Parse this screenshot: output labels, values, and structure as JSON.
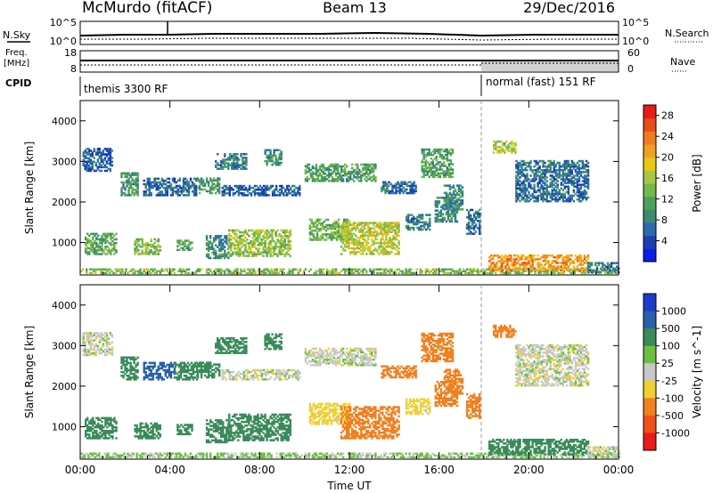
{
  "header": {
    "title": "McMurdo (fitACF)",
    "beam": "Beam 13",
    "date": "29/Dec/2016"
  },
  "top_panels": {
    "nsky_label": "N.Sky",
    "nsearch_label": "N.Search",
    "nsky_ticks": [
      "10^5",
      "10^0"
    ],
    "nsearch_ticks": [
      "10^5",
      "10^0"
    ],
    "freq_label_1": "Freq.",
    "freq_label_2": "[MHz]",
    "freq_ticks": [
      "18",
      "8"
    ],
    "nave_label": "Nave",
    "nave_ticks": [
      "60",
      "0"
    ],
    "cpid_label": "CPID",
    "cpid_modes": [
      {
        "name": "themis 3300 RF",
        "start_hour": 0
      },
      {
        "name": "normal (fast) 151 RF",
        "start_hour": 18
      }
    ]
  },
  "chart_data": [
    {
      "type": "heatmap",
      "title": "",
      "xlabel": "",
      "ylabel": "Slant Range [km]",
      "xlim": [
        0,
        24
      ],
      "ylim": [
        200,
        4500
      ],
      "x_tick_labels": [
        "00:00",
        "04:00",
        "08:00",
        "12:00",
        "16:00",
        "20:00",
        "00:00"
      ],
      "y_ticks": [
        1000,
        2000,
        3000,
        4000
      ],
      "colorbar": {
        "label": "Power [dB]",
        "ticks": [
          "4",
          "8",
          "12",
          "16",
          "20",
          "24",
          "28"
        ],
        "range": [
          0,
          30
        ],
        "colors": [
          "#0a1ee8",
          "#1b3fb0",
          "#2a6bb0",
          "#3a8a74",
          "#4fa05a",
          "#76b84a",
          "#a8c844",
          "#e8c814",
          "#f0a020",
          "#f07a1e",
          "#e84a18",
          "#e81a1a"
        ]
      },
      "echo_regions": [
        {
          "t0": 0.0,
          "t1": 24.0,
          "r0": 230,
          "r1": 340,
          "value": 14
        },
        {
          "t0": 0.1,
          "t1": 1.4,
          "r0": 2750,
          "r1": 3300,
          "value": 6
        },
        {
          "t0": 1.8,
          "t1": 2.6,
          "r0": 2150,
          "r1": 2700,
          "value": 10
        },
        {
          "t0": 2.8,
          "t1": 5.2,
          "r0": 2150,
          "r1": 2600,
          "value": 6
        },
        {
          "t0": 5.2,
          "t1": 6.2,
          "r0": 2200,
          "r1": 2600,
          "value": 10
        },
        {
          "t0": 6.0,
          "t1": 7.4,
          "r0": 2800,
          "r1": 3200,
          "value": 8
        },
        {
          "t0": 6.3,
          "t1": 9.8,
          "r0": 2150,
          "r1": 2400,
          "value": 6
        },
        {
          "t0": 8.2,
          "t1": 9.0,
          "r0": 2900,
          "r1": 3300,
          "value": 9
        },
        {
          "t0": 10.0,
          "t1": 13.2,
          "r0": 2500,
          "r1": 2950,
          "value": 11
        },
        {
          "t0": 13.4,
          "t1": 15.0,
          "r0": 2200,
          "r1": 2500,
          "value": 7
        },
        {
          "t0": 15.2,
          "t1": 16.6,
          "r0": 2600,
          "r1": 3300,
          "value": 11
        },
        {
          "t0": 16.2,
          "t1": 17.0,
          "r0": 1800,
          "r1": 2400,
          "value": 9
        },
        {
          "t0": 17.2,
          "t1": 17.8,
          "r0": 1200,
          "r1": 1800,
          "value": 7
        },
        {
          "t0": 18.4,
          "t1": 19.4,
          "r0": 3200,
          "r1": 3500,
          "value": 16
        },
        {
          "t0": 19.4,
          "t1": 22.6,
          "r0": 2000,
          "r1": 3000,
          "value": 7
        },
        {
          "t0": 0.2,
          "t1": 1.6,
          "r0": 700,
          "r1": 1200,
          "value": 12
        },
        {
          "t0": 2.4,
          "t1": 3.6,
          "r0": 700,
          "r1": 1100,
          "value": 14
        },
        {
          "t0": 4.3,
          "t1": 5.0,
          "r0": 800,
          "r1": 1050,
          "value": 11
        },
        {
          "t0": 5.6,
          "t1": 6.6,
          "r0": 600,
          "r1": 1150,
          "value": 9
        },
        {
          "t0": 6.6,
          "t1": 9.4,
          "r0": 650,
          "r1": 1300,
          "value": 15
        },
        {
          "t0": 10.2,
          "t1": 12.0,
          "r0": 1050,
          "r1": 1550,
          "value": 13
        },
        {
          "t0": 11.6,
          "t1": 14.2,
          "r0": 700,
          "r1": 1500,
          "value": 17
        },
        {
          "t0": 14.5,
          "t1": 15.6,
          "r0": 1300,
          "r1": 1700,
          "value": 8
        },
        {
          "t0": 15.8,
          "t1": 16.8,
          "r0": 1500,
          "r1": 2100,
          "value": 9
        },
        {
          "t0": 18.2,
          "t1": 22.6,
          "r0": 300,
          "r1": 700,
          "value": 22
        },
        {
          "t0": 22.6,
          "t1": 24.0,
          "r0": 250,
          "r1": 500,
          "value": 8
        }
      ]
    },
    {
      "type": "heatmap",
      "title": "",
      "xlabel": "Time UT",
      "ylabel": "Slant Range [km]",
      "xlim": [
        0,
        24
      ],
      "ylim": [
        200,
        4500
      ],
      "x_tick_labels": [
        "00:00",
        "04:00",
        "08:00",
        "12:00",
        "16:00",
        "20:00",
        "00:00"
      ],
      "y_ticks": [
        1000,
        2000,
        3000,
        4000
      ],
      "colorbar": {
        "label": "Velocity [m s^-1]",
        "ticks": [
          "1000",
          "500",
          "100",
          "25",
          "-25",
          "-100",
          "-500",
          "-1000"
        ],
        "levels": [
          1500,
          1000,
          500,
          100,
          25,
          -25,
          -100,
          -500,
          -1000
        ],
        "colors": [
          "#1a3cc8",
          "#2a60a8",
          "#3a8a5a",
          "#6cc040",
          "#c8c8c8",
          "#f0d030",
          "#f08020",
          "#f05018",
          "#e81a1a"
        ]
      },
      "echo_regions": [
        {
          "t0": 0.0,
          "t1": 24.0,
          "r0": 230,
          "r1": 340,
          "value": 30
        },
        {
          "t0": 0.1,
          "t1": 1.4,
          "r0": 2750,
          "r1": 3300,
          "value": 0
        },
        {
          "t0": 1.8,
          "t1": 2.6,
          "r0": 2150,
          "r1": 2700,
          "value": 150
        },
        {
          "t0": 2.8,
          "t1": 4.2,
          "r0": 2150,
          "r1": 2600,
          "value": 600
        },
        {
          "t0": 4.2,
          "t1": 5.2,
          "r0": 2150,
          "r1": 2600,
          "value": 150
        },
        {
          "t0": 5.2,
          "t1": 6.2,
          "r0": 2200,
          "r1": 2600,
          "value": 150
        },
        {
          "t0": 6.0,
          "t1": 7.4,
          "r0": 2800,
          "r1": 3200,
          "value": 150
        },
        {
          "t0": 6.3,
          "t1": 9.8,
          "r0": 2150,
          "r1": 2400,
          "value": 0
        },
        {
          "t0": 8.2,
          "t1": 9.0,
          "r0": 2900,
          "r1": 3300,
          "value": 150
        },
        {
          "t0": 10.0,
          "t1": 13.2,
          "r0": 2500,
          "r1": 2950,
          "value": 0
        },
        {
          "t0": 13.4,
          "t1": 15.0,
          "r0": 2200,
          "r1": 2500,
          "value": -200
        },
        {
          "t0": 15.2,
          "t1": 16.6,
          "r0": 2600,
          "r1": 3300,
          "value": -200
        },
        {
          "t0": 16.2,
          "t1": 17.0,
          "r0": 1800,
          "r1": 2400,
          "value": -200
        },
        {
          "t0": 17.2,
          "t1": 17.8,
          "r0": 1200,
          "r1": 1800,
          "value": -200
        },
        {
          "t0": 18.4,
          "t1": 19.4,
          "r0": 3200,
          "r1": 3500,
          "value": -200
        },
        {
          "t0": 19.4,
          "t1": 22.6,
          "r0": 2000,
          "r1": 3000,
          "value": 0
        },
        {
          "t0": 0.2,
          "t1": 1.6,
          "r0": 700,
          "r1": 1200,
          "value": 150
        },
        {
          "t0": 2.4,
          "t1": 3.6,
          "r0": 700,
          "r1": 1100,
          "value": 150
        },
        {
          "t0": 4.3,
          "t1": 5.0,
          "r0": 800,
          "r1": 1050,
          "value": 150
        },
        {
          "t0": 5.6,
          "t1": 6.6,
          "r0": 600,
          "r1": 1150,
          "value": 150
        },
        {
          "t0": 6.6,
          "t1": 9.4,
          "r0": 650,
          "r1": 1300,
          "value": 150
        },
        {
          "t0": 10.2,
          "t1": 12.0,
          "r0": 1050,
          "r1": 1550,
          "value": -60
        },
        {
          "t0": 11.6,
          "t1": 14.2,
          "r0": 700,
          "r1": 1500,
          "value": -200
        },
        {
          "t0": 14.5,
          "t1": 15.6,
          "r0": 1300,
          "r1": 1700,
          "value": -60
        },
        {
          "t0": 15.8,
          "t1": 16.8,
          "r0": 1500,
          "r1": 2100,
          "value": -200
        },
        {
          "t0": 18.2,
          "t1": 22.6,
          "r0": 300,
          "r1": 700,
          "value": 150
        },
        {
          "t0": 22.6,
          "t1": 24.0,
          "r0": 250,
          "r1": 500,
          "value": 0
        }
      ]
    }
  ]
}
